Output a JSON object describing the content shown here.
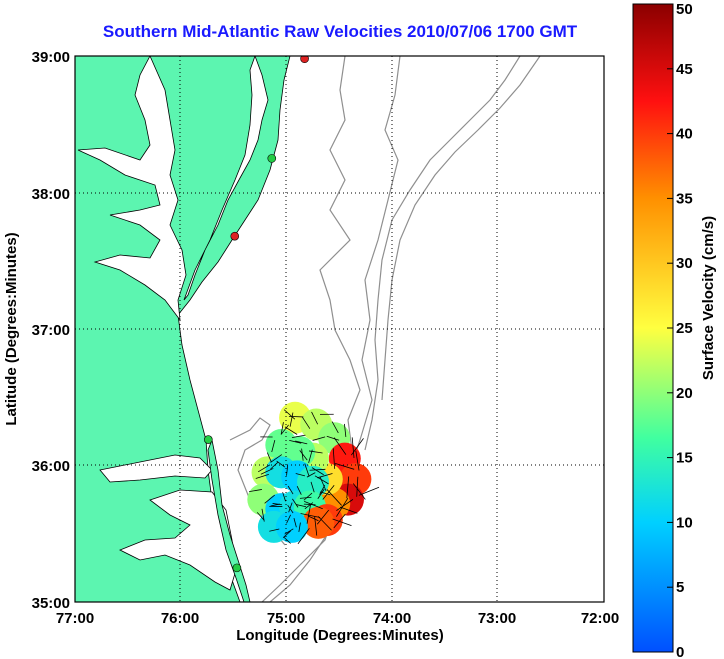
{
  "title": "Southern Mid-Atlantic Raw Velocities 2010/07/06 1700 GMT",
  "x_axis": {
    "label": "Longitude (Degrees:Minutes)",
    "ticks": [
      "77:00",
      "76:00",
      "75:00",
      "74:00",
      "73:00",
      "72:00"
    ]
  },
  "y_axis": {
    "label": "Latitude (Degrees:Minutes)",
    "ticks": [
      "39:00",
      "38:00",
      "37:00",
      "36:00",
      "35:00"
    ]
  },
  "colorbar": {
    "label": "Surface Velocity (cm/s)",
    "ticks": [
      "50",
      "45",
      "40",
      "35",
      "30",
      "25",
      "20",
      "15",
      "10",
      "5",
      "0"
    ],
    "min": 0,
    "max": 50,
    "colors": [
      "#0050ff",
      "#00d0ff",
      "#40ffa0",
      "#ffff40",
      "#ff9000",
      "#ff1010",
      "#8b0000"
    ]
  },
  "colors": {
    "land": "#5cf5b0",
    "water": "#ffffff",
    "coastline": "#000000",
    "bathymetry": "#8f8f8f",
    "grid": "#000000",
    "station_active": "#22cc44",
    "station_inactive": "#dd2222"
  },
  "grid": "dotted",
  "stations": [
    {
      "status": "inactive",
      "lon": -74.83,
      "lat": 38.98
    },
    {
      "status": "active",
      "lon": -75.14,
      "lat": 38.25
    },
    {
      "status": "inactive",
      "lon": -75.49,
      "lat": 37.68
    },
    {
      "status": "active",
      "lon": -75.74,
      "lat": 36.19
    },
    {
      "status": "active",
      "lon": -75.47,
      "lat": 35.25
    }
  ],
  "chart_data": {
    "type": "heatmap",
    "title": "Southern Mid-Atlantic Raw Velocities 2010/07/06 1700 GMT",
    "xlabel": "Longitude (Degrees:Minutes)",
    "ylabel": "Latitude (Degrees:Minutes)",
    "xlim": [
      -77,
      -72
    ],
    "ylim": [
      35,
      39
    ],
    "value_label": "Surface Velocity (cm/s)",
    "value_range": [
      0,
      50
    ],
    "field_points": [
      {
        "lon": -74.92,
        "lat": 36.35,
        "speed": 24
      },
      {
        "lon": -74.72,
        "lat": 36.3,
        "speed": 22
      },
      {
        "lon": -74.55,
        "lat": 36.2,
        "speed": 20
      },
      {
        "lon": -74.45,
        "lat": 36.05,
        "speed": 42
      },
      {
        "lon": -74.35,
        "lat": 35.9,
        "speed": 40
      },
      {
        "lon": -74.42,
        "lat": 35.75,
        "speed": 45
      },
      {
        "lon": -74.55,
        "lat": 35.72,
        "speed": 35
      },
      {
        "lon": -74.62,
        "lat": 35.9,
        "speed": 28
      },
      {
        "lon": -74.75,
        "lat": 36.05,
        "speed": 22
      },
      {
        "lon": -74.88,
        "lat": 36.1,
        "speed": 18
      },
      {
        "lon": -75.05,
        "lat": 36.15,
        "speed": 18
      },
      {
        "lon": -75.18,
        "lat": 35.95,
        "speed": 22
      },
      {
        "lon": -75.05,
        "lat": 35.95,
        "speed": 12
      },
      {
        "lon": -74.9,
        "lat": 35.92,
        "speed": 10
      },
      {
        "lon": -74.75,
        "lat": 35.88,
        "speed": 14
      },
      {
        "lon": -75.22,
        "lat": 35.75,
        "speed": 20
      },
      {
        "lon": -75.05,
        "lat": 35.68,
        "speed": 10
      },
      {
        "lon": -74.92,
        "lat": 35.7,
        "speed": 12
      },
      {
        "lon": -74.78,
        "lat": 35.7,
        "speed": 16
      },
      {
        "lon": -74.62,
        "lat": 35.6,
        "speed": 40
      },
      {
        "lon": -74.7,
        "lat": 35.58,
        "speed": 38
      },
      {
        "lon": -75.12,
        "lat": 35.55,
        "speed": 12
      },
      {
        "lon": -74.95,
        "lat": 35.55,
        "speed": 10
      }
    ]
  }
}
